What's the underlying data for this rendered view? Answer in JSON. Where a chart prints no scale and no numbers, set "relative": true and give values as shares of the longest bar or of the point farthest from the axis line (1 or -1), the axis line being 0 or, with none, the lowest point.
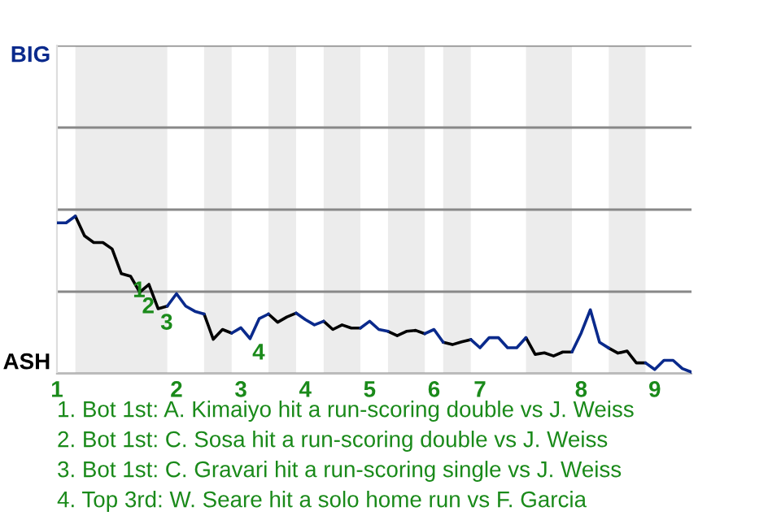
{
  "chart_data": {
    "type": "line",
    "relative": true,
    "categories": [
      "1",
      null,
      null,
      null,
      null,
      null,
      null,
      null,
      null,
      null,
      null,
      null,
      null,
      "2",
      null,
      null,
      null,
      null,
      null,
      null,
      "3",
      null,
      null,
      null,
      null,
      null,
      null,
      "4",
      null,
      null,
      null,
      null,
      null,
      null,
      "5",
      null,
      null,
      null,
      null,
      null,
      null,
      "6",
      null,
      null,
      null,
      null,
      "7",
      null,
      null,
      null,
      null,
      null,
      null,
      null,
      null,
      null,
      null,
      "8",
      null,
      null,
      null,
      null,
      null,
      null,
      null,
      "9",
      null,
      null,
      null,
      null
    ],
    "series": [
      {
        "color": "#000000",
        "values": [
          null,
          null,
          1,
          0.875,
          0.833,
          0.833,
          0.792,
          0.635,
          0.619,
          0.517,
          0.567,
          0.413,
          0.429,
          null,
          null,
          null,
          0.379,
          0.219,
          0.281,
          0.258,
          null,
          null,
          null,
          0.379,
          0.327,
          0.36,
          0.385,
          null,
          null,
          0.333,
          0.281,
          0.31,
          0.29,
          0.29,
          null,
          null,
          0.269,
          0.242,
          0.269,
          0.275,
          0.254,
          null,
          0.2,
          0.185,
          0.202,
          0.217,
          null,
          null,
          null,
          null,
          null,
          0.229,
          0.123,
          0.133,
          0.113,
          0.138,
          0.138,
          null,
          null,
          null,
          0.163,
          0.131,
          0.144,
          0.069,
          0.069,
          null,
          null,
          null,
          null,
          null
        ]
      },
      {
        "color": "#0a2a8c",
        "values": [
          0.958,
          0.958,
          1,
          null,
          null,
          null,
          null,
          null,
          null,
          null,
          null,
          null,
          0.429,
          0.508,
          0.429,
          0.396,
          0.379,
          null,
          null,
          0.258,
          0.292,
          0.223,
          0.35,
          0.379,
          null,
          null,
          0.385,
          0.344,
          0.31,
          0.333,
          null,
          null,
          null,
          0.29,
          0.333,
          0.281,
          0.269,
          null,
          null,
          null,
          0.254,
          0.281,
          0.2,
          null,
          null,
          0.217,
          0.165,
          0.229,
          0.229,
          0.165,
          0.165,
          0.229,
          null,
          null,
          null,
          null,
          0.138,
          0.258,
          0.406,
          0.2,
          0.163,
          null,
          null,
          null,
          0.069,
          0.027,
          0.085,
          0.085,
          0.033,
          0.01
        ]
      }
    ],
    "ylim": [
      0,
      2.083
    ],
    "grid": "y",
    "annotations": [
      "BIG",
      "ASH",
      {
        "text": "1",
        "y": 0.619
      },
      {
        "text": "2",
        "y": 0.517
      },
      {
        "text": "3",
        "y": 0.413
      },
      {
        "text": "4",
        "y": 0.223
      },
      "1. Bot 1st: A. Kimaiyo hit a run-scoring double vs J. Weiss",
      "2. Bot 1st: C. Sosa hit a run-scoring double vs J. Weiss",
      "3. Bot 1st: C. Gravari hit a run-scoring single vs J. Weiss",
      "4. Top 3rd: W. Seare hit a solo home run vs F. Garcia"
    ]
  }
}
